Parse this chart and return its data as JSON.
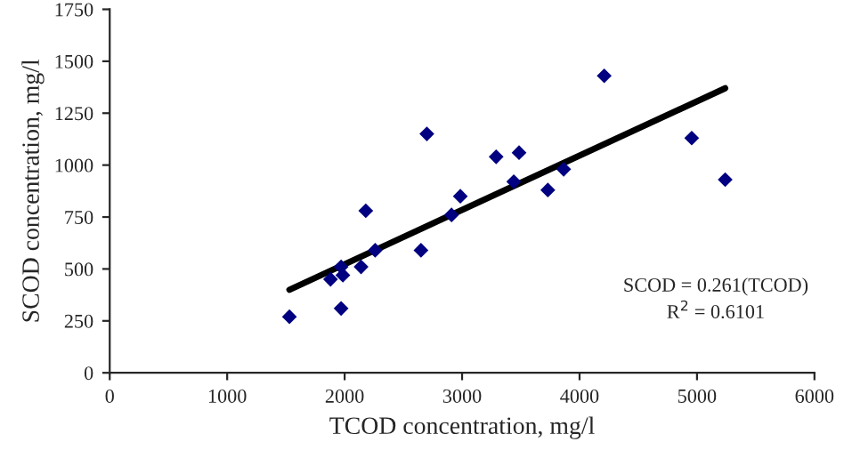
{
  "chart_data": {
    "type": "scatter",
    "xlabel": "TCOD concentration, mg/l",
    "ylabel": "SCOD concentration, mg/l",
    "xlim": [
      0,
      6000
    ],
    "xticks": [
      0,
      1000,
      2000,
      3000,
      4000,
      5000,
      6000
    ],
    "ylim": [
      0,
      1750
    ],
    "yticks": [
      0,
      250,
      500,
      750,
      1000,
      1250,
      1500,
      1750
    ],
    "grid": false,
    "marker": "diamond",
    "series": [
      {
        "color": "#000080",
        "x": [
          1530,
          1880,
          1970,
          1970,
          1985,
          2140,
          2180,
          2260,
          2650,
          2700,
          2910,
          2985,
          3290,
          3440,
          3485,
          3730,
          3865,
          4210,
          4955,
          5240
        ],
        "values": [
          270,
          450,
          310,
          510,
          470,
          510,
          780,
          590,
          590,
          1150,
          760,
          850,
          1040,
          920,
          1060,
          880,
          980,
          1430,
          1130,
          930
        ]
      },
      {
        "type": "line",
        "marker": "none",
        "color": "#000000",
        "x": [
          1530,
          5240
        ],
        "values": [
          400,
          1370
        ]
      }
    ],
    "annotations": [
      "SCOD = 0.261(TCOD)\nR$^{2}$ = 0.6101"
    ]
  }
}
